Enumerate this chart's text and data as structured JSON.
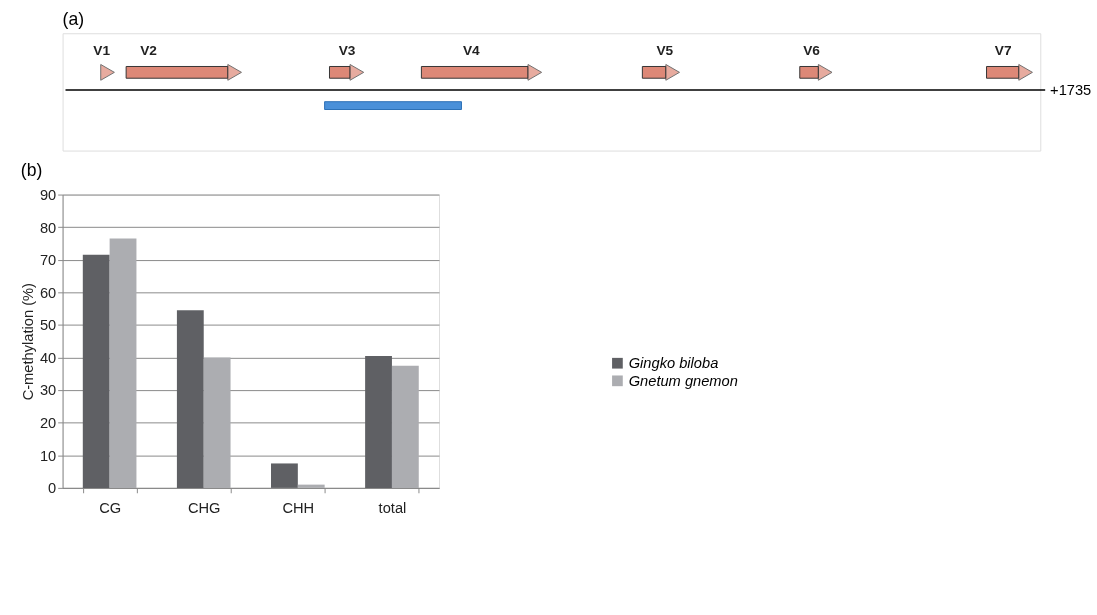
{
  "chart_data": [
    {
      "type": "other",
      "title": "(a)",
      "annotations": [
        "V1",
        "V2",
        "V3",
        "V4",
        "V5",
        "V6",
        "V7",
        "+1735"
      ]
    },
    {
      "type": "bar",
      "title": "(b)",
      "ylabel": "C-methylation (%)",
      "categories": [
        "CG",
        "CHG",
        "CHH",
        "total"
      ],
      "series": [
        {
          "name": "Gingko biloba",
          "color": "#5f6064",
          "values": [
            71.5,
            54.5,
            7.5,
            40.5
          ]
        },
        {
          "name": "Gnetum gnemon",
          "color": "#acadb1",
          "values": [
            76.5,
            40,
            1,
            37.5
          ]
        }
      ],
      "ylim": [
        0,
        90
      ],
      "yticks": [
        0,
        10,
        20,
        30,
        40,
        50,
        60,
        70,
        80,
        90
      ],
      "grid": "y",
      "legend": "right"
    }
  ]
}
